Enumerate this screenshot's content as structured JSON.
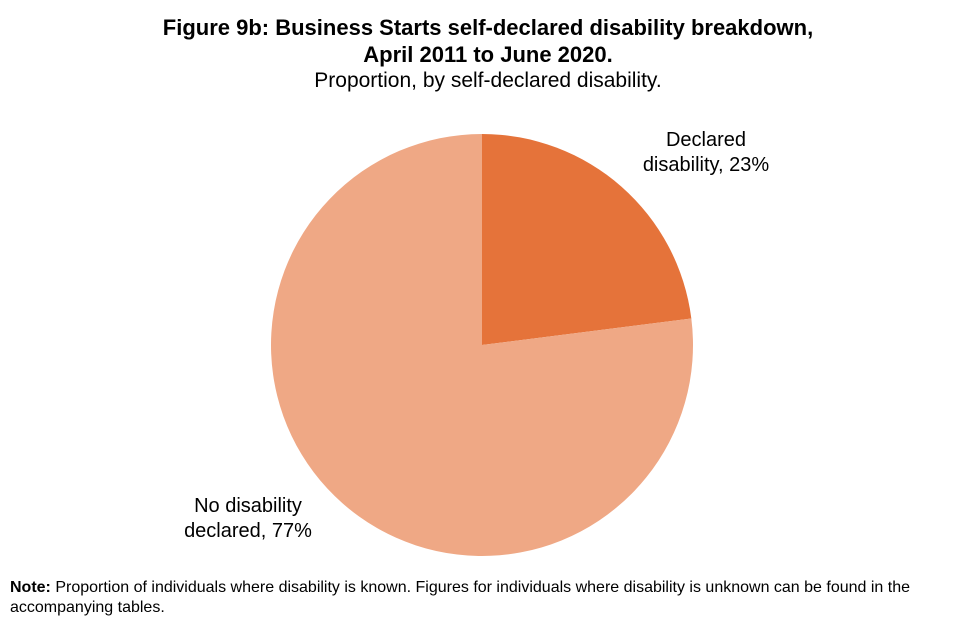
{
  "chart_data": {
    "type": "pie",
    "title_line1": "Figure 9b: Business Starts self-declared disability breakdown,",
    "title_line2": "April 2011 to June 2020.",
    "subtitle": "Proportion, by self-declared disability.",
    "slices": [
      {
        "label_lines": [
          "Declared",
          "disability, 23%"
        ],
        "category": "Declared disability",
        "value": 23,
        "color": "#E5733A"
      },
      {
        "label_lines": [
          "No disability",
          "declared, 77%"
        ],
        "category": "No disability declared",
        "value": 77,
        "color": "#EFA885"
      }
    ]
  },
  "note": {
    "label": "Note:",
    "text": " Proportion of individuals  where disability is known. Figures for individuals  where disability is unknown can be found in the accompanying tables."
  }
}
